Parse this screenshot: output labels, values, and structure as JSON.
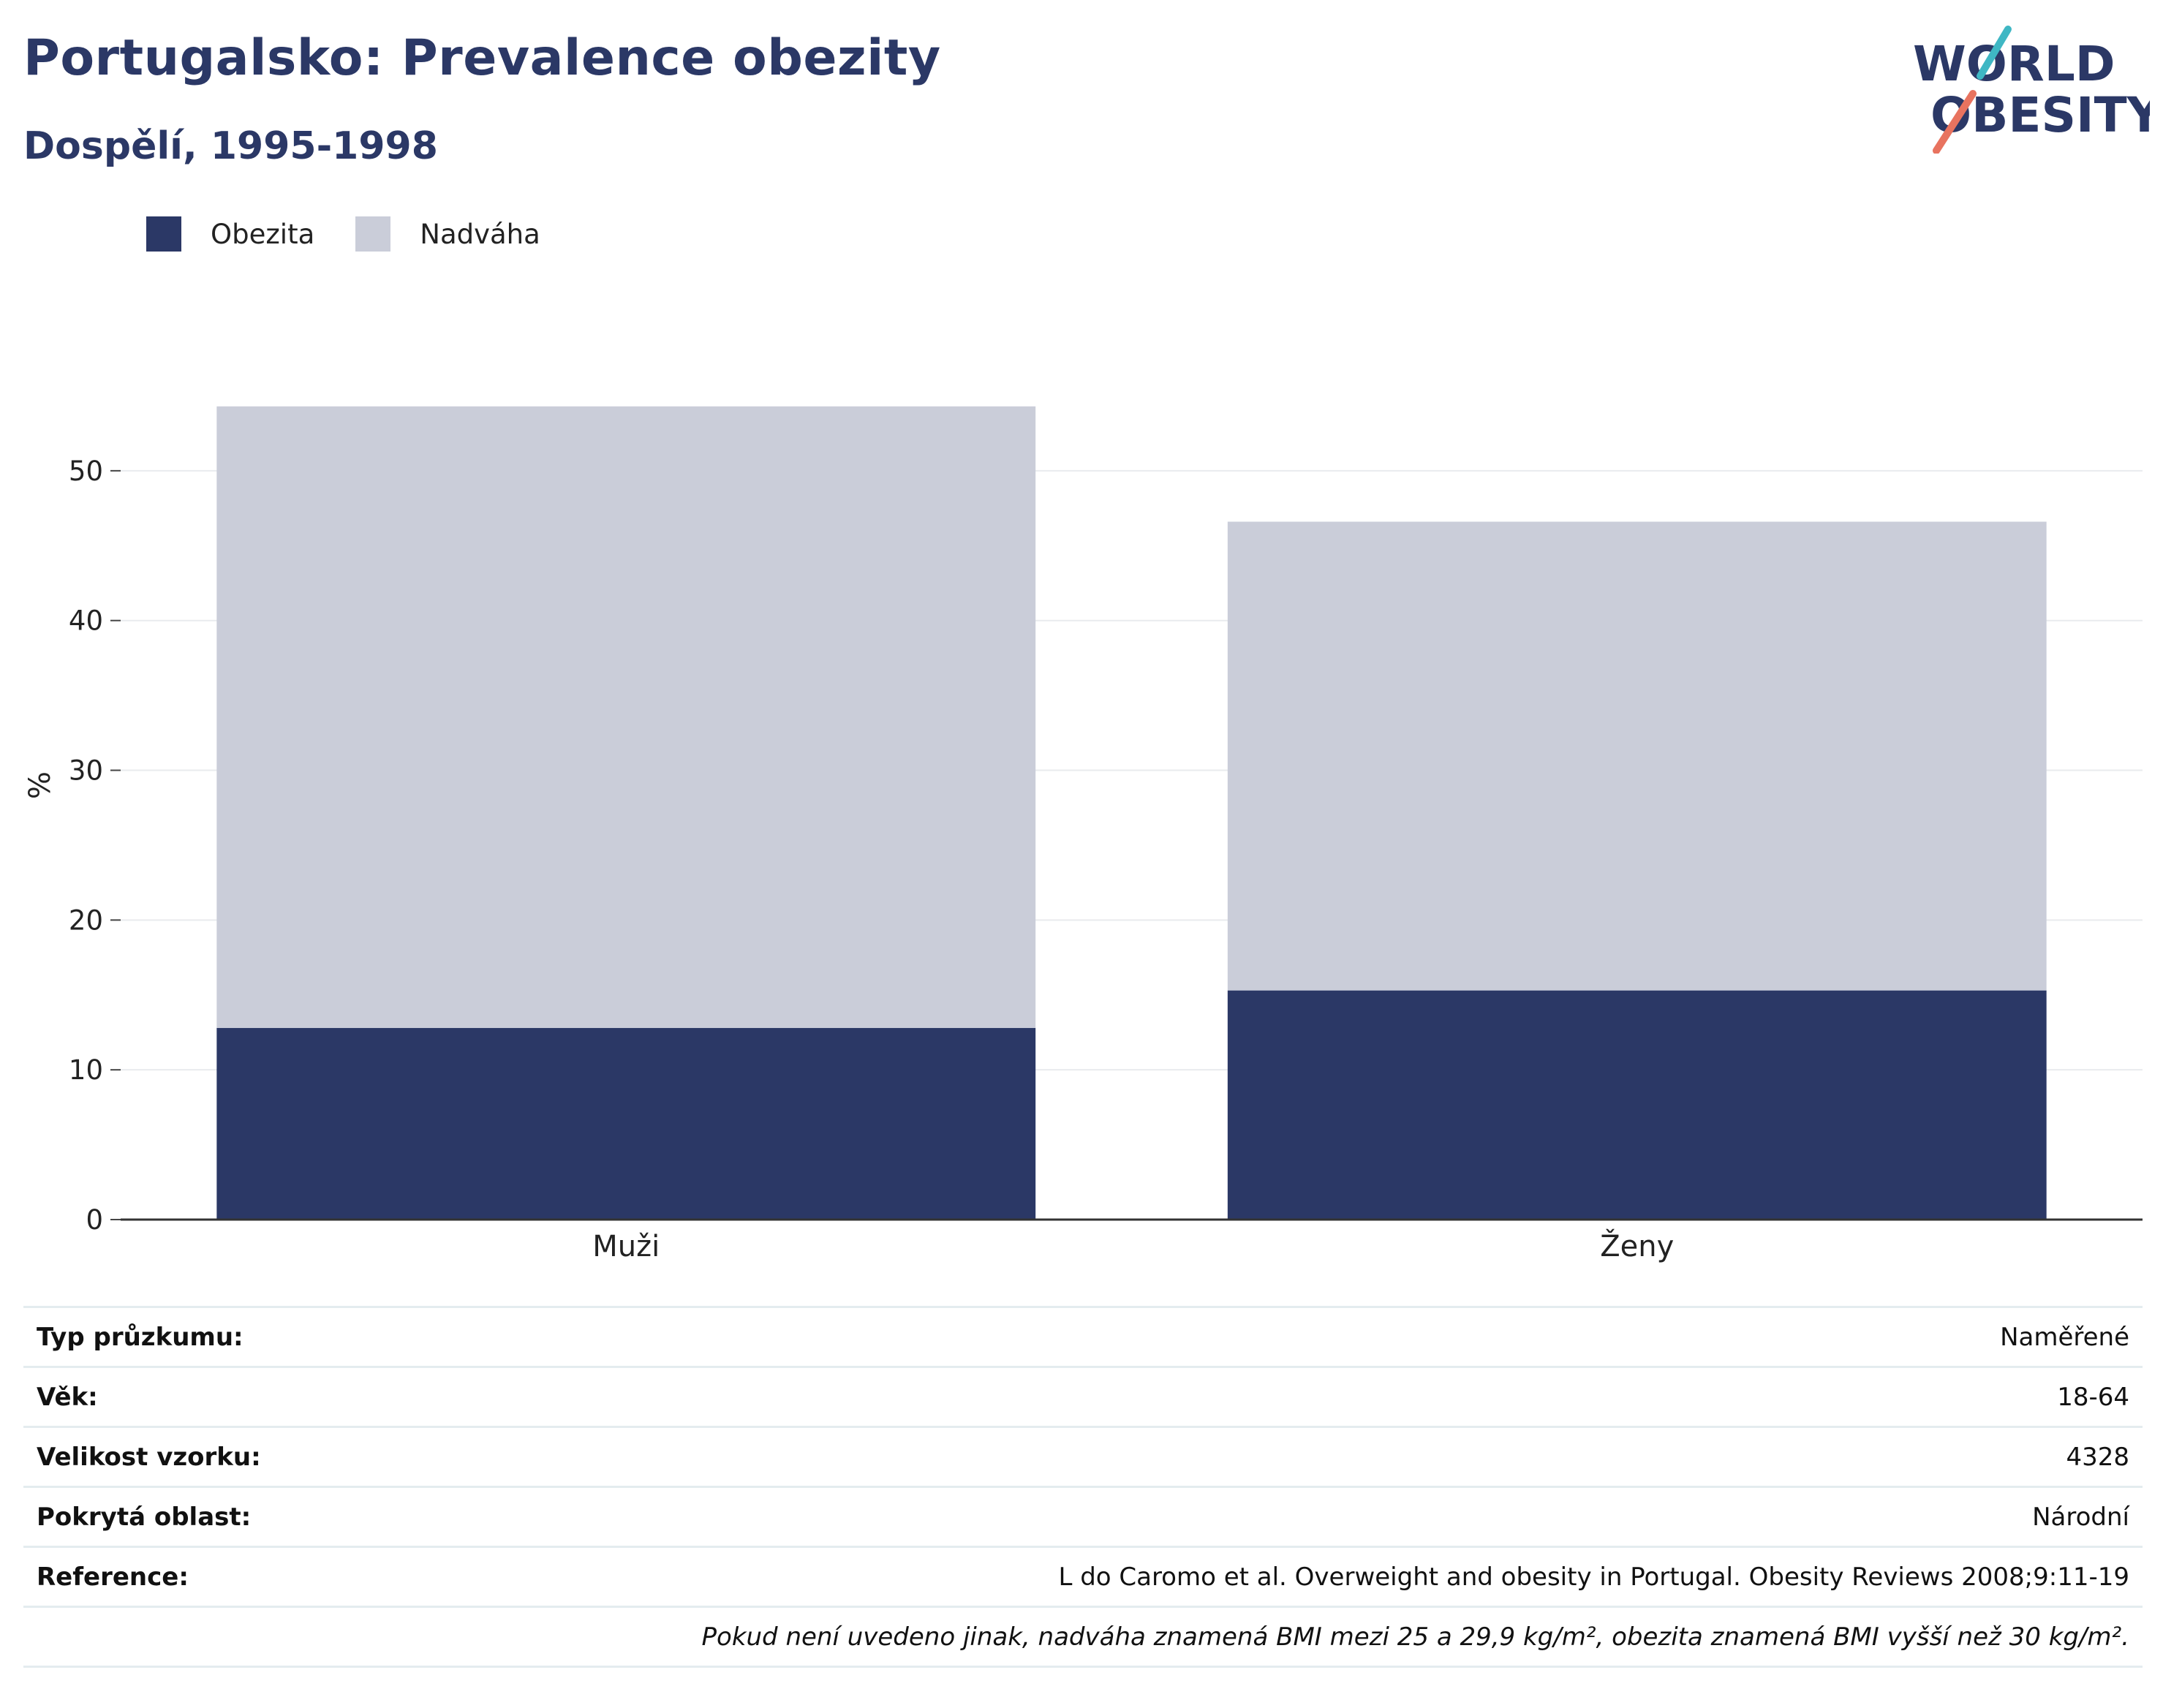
{
  "header": {
    "title": "Portugalsko: Prevalence obezity",
    "subtitle": "Dospělí, 1995-1998"
  },
  "logo": {
    "line1": "WORLD",
    "line2": "OBESITY"
  },
  "colors": {
    "obesity": "#2b3866",
    "overweight": "#cacdd9",
    "text_accent": "#2b3866"
  },
  "legend": [
    {
      "label": "Obezita",
      "color": "#2b3866"
    },
    {
      "label": "Nadváha",
      "color": "#cacdd9"
    }
  ],
  "chart_data": {
    "type": "bar",
    "stacked": true,
    "categories": [
      "Muži",
      "Ženy"
    ],
    "series": [
      {
        "name": "Obezita",
        "values": [
          12.8,
          15.3
        ]
      },
      {
        "name": "Nadváha",
        "values": [
          41.5,
          31.3
        ]
      }
    ],
    "ylabel": "%",
    "ylim": [
      0,
      58
    ],
    "yticks": [
      0,
      10,
      20,
      30,
      40,
      50
    ],
    "grid": true,
    "legend_position": "top-left"
  },
  "info": {
    "rows": [
      {
        "label": "Typ průzkumu:",
        "value": "Naměřené"
      },
      {
        "label": "Věk:",
        "value": "18-64"
      },
      {
        "label": "Velikost vzorku:",
        "value": "4328"
      },
      {
        "label": "Pokrytá oblast:",
        "value": "Národní"
      },
      {
        "label": "Reference:",
        "value": "L do Caromo et al. Overweight and obesity in Portugal. Obesity Reviews 2008;9:11-19"
      }
    ],
    "note": "Pokud není uvedeno jinak, nadváha znamená BMI mezi 25 a 29,9 kg/m², obezita znamená BMI vyšší než 30 kg/m²."
  }
}
